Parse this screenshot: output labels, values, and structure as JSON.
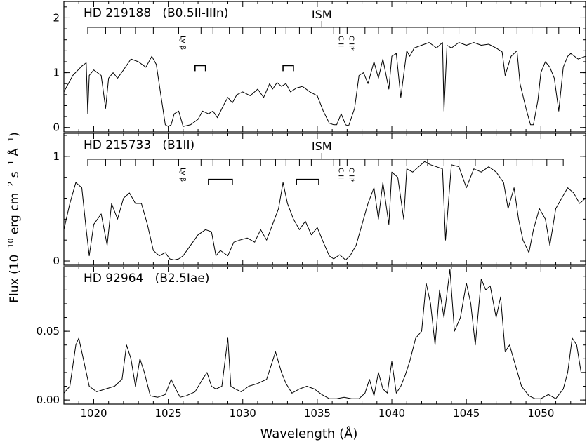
{
  "figure": {
    "ylabel_parts": [
      "Flux (10",
      "−10",
      " erg cm",
      "−2",
      " s",
      "−1",
      " Å",
      "−1",
      ")"
    ],
    "xlabel": "Wavelength (Å)"
  },
  "chart_data": [
    {
      "type": "line",
      "title": "HD 219188   (B0.5II-IIIn)",
      "ism_label": "ISM",
      "line_labels": [
        {
          "text": "Ly β",
          "x": 1025.7
        },
        {
          "text": "C II",
          "x": 1036.3
        },
        {
          "text": "C II*",
          "x": 1037.0
        }
      ],
      "xlim": [
        1018,
        1053
      ],
      "ylim": [
        -0.08,
        2.3
      ],
      "yticks": [
        0,
        1,
        2
      ],
      "ytick_labels": [
        "0",
        "1",
        "2"
      ],
      "ism_ladder_start": 1019.6,
      "ism_ladder_end": 1052.6,
      "ism_ladder_ticks": [
        1019.6,
        1020.8,
        1021.8,
        1022.8,
        1024.0,
        1025.7,
        1027.2,
        1028.0,
        1029.1,
        1030.0,
        1031.2,
        1032.2,
        1032.9,
        1033.8,
        1034.6,
        1036.1,
        1036.5,
        1037.0,
        1038.2,
        1039.1,
        1040.0,
        1041.0,
        1042.4,
        1043.5,
        1044.5,
        1045.6,
        1047.5,
        1048.4,
        1049.4,
        1050.4,
        1051.2,
        1052.6
      ],
      "brackets": [
        [
          1026.8,
          1027.5
        ],
        [
          1032.7,
          1033.4
        ]
      ],
      "series": [
        {
          "x": [
            1018.0,
            1018.6,
            1019.2,
            1019.5,
            1019.6,
            1019.7,
            1020.0,
            1020.5,
            1020.8,
            1021.0,
            1021.3,
            1021.6,
            1022.0,
            1022.5,
            1023.0,
            1023.5,
            1023.9,
            1024.2,
            1024.5,
            1024.8,
            1025.0,
            1025.2,
            1025.4,
            1025.7,
            1026.0,
            1026.5,
            1027.0,
            1027.3,
            1027.7,
            1028.0,
            1028.3,
            1028.7,
            1029.0,
            1029.3,
            1029.6,
            1030.0,
            1030.5,
            1031.0,
            1031.4,
            1031.8,
            1032.0,
            1032.3,
            1032.6,
            1032.9,
            1033.2,
            1033.6,
            1034.0,
            1034.5,
            1035.0,
            1035.4,
            1035.8,
            1036.1,
            1036.3,
            1036.6,
            1036.9,
            1037.1,
            1037.5,
            1037.8,
            1038.1,
            1038.4,
            1038.8,
            1039.1,
            1039.4,
            1039.8,
            1040.0,
            1040.3,
            1040.6,
            1041.0,
            1041.2,
            1041.5,
            1042.0,
            1042.5,
            1043.0,
            1043.4,
            1043.5,
            1043.7,
            1044.0,
            1044.5,
            1045.0,
            1045.5,
            1046.0,
            1046.5,
            1047.0,
            1047.4,
            1047.6,
            1048.0,
            1048.4,
            1048.6,
            1049.0,
            1049.3,
            1049.5,
            1049.8,
            1050.0,
            1050.3,
            1050.6,
            1050.9,
            1051.2,
            1051.5,
            1051.8,
            1052.0,
            1052.5,
            1053.0
          ],
          "y": [
            0.65,
            0.95,
            1.12,
            1.18,
            0.25,
            0.95,
            1.05,
            0.95,
            0.35,
            0.9,
            1.0,
            0.9,
            1.05,
            1.25,
            1.2,
            1.1,
            1.3,
            1.15,
            0.6,
            0.05,
            0.02,
            0.05,
            0.25,
            0.3,
            0.02,
            0.05,
            0.15,
            0.3,
            0.25,
            0.3,
            0.18,
            0.4,
            0.55,
            0.45,
            0.6,
            0.65,
            0.58,
            0.7,
            0.55,
            0.8,
            0.7,
            0.82,
            0.75,
            0.8,
            0.65,
            0.72,
            0.75,
            0.65,
            0.58,
            0.3,
            0.08,
            0.05,
            0.05,
            0.25,
            0.05,
            0.03,
            0.35,
            0.95,
            1.0,
            0.8,
            1.2,
            0.9,
            1.25,
            0.7,
            1.3,
            1.35,
            0.55,
            1.4,
            1.3,
            1.45,
            1.5,
            1.55,
            1.45,
            1.55,
            0.3,
            1.5,
            1.45,
            1.55,
            1.5,
            1.55,
            1.5,
            1.52,
            1.45,
            1.38,
            0.95,
            1.3,
            1.4,
            0.8,
            0.35,
            0.05,
            0.05,
            0.5,
            1.0,
            1.2,
            1.1,
            0.9,
            0.3,
            1.1,
            1.3,
            1.35,
            1.25,
            1.3
          ]
        }
      ]
    },
    {
      "type": "line",
      "title": "HD 215733   (B1II)",
      "ism_label": "ISM",
      "line_labels": [
        {
          "text": "Ly β",
          "x": 1025.7
        },
        {
          "text": "C II",
          "x": 1036.3
        },
        {
          "text": "C II*",
          "x": 1037.0
        }
      ],
      "xlim": [
        1018,
        1053
      ],
      "ylim": [
        -0.04,
        1.22
      ],
      "yticks": [
        0,
        1
      ],
      "ytick_labels": [
        "0",
        "1"
      ],
      "ism_ladder_start": 1019.6,
      "ism_ladder_end": 1051.5,
      "ism_ladder_ticks": [
        1019.6,
        1020.8,
        1021.8,
        1022.8,
        1024.0,
        1025.7,
        1027.2,
        1028.0,
        1029.1,
        1030.0,
        1031.2,
        1032.2,
        1032.9,
        1033.8,
        1034.6,
        1036.1,
        1036.5,
        1037.0,
        1038.2,
        1039.1,
        1040.0,
        1041.0,
        1042.4,
        1043.5,
        1044.5,
        1045.6,
        1047.5,
        1048.4,
        1049.4,
        1050.4,
        1051.5
      ],
      "brackets": [
        [
          1027.7,
          1029.3
        ],
        [
          1033.6,
          1035.1
        ]
      ],
      "series": [
        {
          "x": [
            1018.0,
            1018.4,
            1018.8,
            1019.2,
            1019.5,
            1019.7,
            1020.0,
            1020.5,
            1020.9,
            1021.2,
            1021.6,
            1022.0,
            1022.4,
            1022.8,
            1023.2,
            1023.6,
            1024.0,
            1024.4,
            1024.8,
            1025.1,
            1025.4,
            1025.7,
            1026.0,
            1026.5,
            1027.0,
            1027.5,
            1027.9,
            1028.2,
            1028.5,
            1029.0,
            1029.4,
            1029.8,
            1030.3,
            1030.8,
            1031.2,
            1031.6,
            1032.0,
            1032.4,
            1032.7,
            1033.0,
            1033.4,
            1033.8,
            1034.2,
            1034.6,
            1035.0,
            1035.4,
            1035.8,
            1036.1,
            1036.5,
            1036.9,
            1037.2,
            1037.6,
            1038.0,
            1038.4,
            1038.8,
            1039.1,
            1039.4,
            1039.8,
            1040.0,
            1040.4,
            1040.8,
            1041.0,
            1041.4,
            1041.8,
            1042.2,
            1042.6,
            1043.0,
            1043.4,
            1043.6,
            1044.0,
            1044.5,
            1045.0,
            1045.5,
            1046.0,
            1046.5,
            1047.0,
            1047.5,
            1047.8,
            1048.2,
            1048.5,
            1048.8,
            1049.2,
            1049.5,
            1049.9,
            1050.3,
            1050.6,
            1051.0,
            1051.4,
            1051.8,
            1052.2,
            1052.6,
            1053.0
          ],
          "y": [
            0.3,
            0.55,
            0.75,
            0.7,
            0.3,
            0.05,
            0.35,
            0.45,
            0.15,
            0.55,
            0.4,
            0.6,
            0.65,
            0.55,
            0.55,
            0.35,
            0.1,
            0.05,
            0.08,
            0.02,
            0.01,
            0.02,
            0.05,
            0.15,
            0.25,
            0.3,
            0.28,
            0.05,
            0.1,
            0.05,
            0.18,
            0.2,
            0.22,
            0.18,
            0.3,
            0.2,
            0.35,
            0.5,
            0.75,
            0.55,
            0.4,
            0.3,
            0.38,
            0.25,
            0.32,
            0.18,
            0.05,
            0.02,
            0.06,
            0.01,
            0.05,
            0.15,
            0.35,
            0.55,
            0.7,
            0.4,
            0.75,
            0.35,
            0.85,
            0.8,
            0.4,
            0.88,
            0.85,
            0.9,
            0.95,
            0.92,
            0.9,
            0.88,
            0.2,
            0.92,
            0.9,
            0.7,
            0.88,
            0.85,
            0.9,
            0.85,
            0.75,
            0.5,
            0.7,
            0.4,
            0.2,
            0.08,
            0.3,
            0.5,
            0.4,
            0.15,
            0.5,
            0.6,
            0.7,
            0.65,
            0.55,
            0.6
          ]
        }
      ]
    },
    {
      "type": "line",
      "title": "HD 92964   (B2.5Iae)",
      "xlim": [
        1018,
        1053
      ],
      "ylim": [
        -0.003,
        0.097
      ],
      "yticks": [
        0.0,
        0.05
      ],
      "ytick_labels": [
        "0.00",
        "0.05"
      ],
      "xticks": [
        1020,
        1025,
        1030,
        1035,
        1040,
        1045,
        1050
      ],
      "xtick_labels": [
        "1020",
        "1025",
        "1030",
        "1035",
        "1040",
        "1045",
        "1050"
      ],
      "series": [
        {
          "x": [
            1018.0,
            1018.4,
            1018.8,
            1019.0,
            1019.3,
            1019.7,
            1020.2,
            1020.8,
            1021.4,
            1021.9,
            1022.2,
            1022.5,
            1022.8,
            1023.1,
            1023.4,
            1023.8,
            1024.3,
            1024.8,
            1025.2,
            1025.5,
            1025.8,
            1026.2,
            1026.8,
            1027.3,
            1027.6,
            1027.9,
            1028.2,
            1028.6,
            1029.0,
            1029.2,
            1029.5,
            1029.9,
            1030.4,
            1031.0,
            1031.6,
            1032.2,
            1032.6,
            1032.9,
            1033.3,
            1033.8,
            1034.3,
            1034.8,
            1035.3,
            1035.8,
            1036.3,
            1036.8,
            1037.3,
            1037.8,
            1038.2,
            1038.5,
            1038.8,
            1039.1,
            1039.4,
            1039.7,
            1040.0,
            1040.3,
            1040.6,
            1040.9,
            1041.2,
            1041.6,
            1042.0,
            1042.3,
            1042.6,
            1042.9,
            1043.2,
            1043.5,
            1043.9,
            1044.2,
            1044.6,
            1045.0,
            1045.3,
            1045.6,
            1046.0,
            1046.3,
            1046.6,
            1047.0,
            1047.3,
            1047.6,
            1047.9,
            1048.3,
            1048.7,
            1049.2,
            1049.6,
            1050.0,
            1050.5,
            1051.0,
            1051.5,
            1051.8,
            1052.1,
            1052.4,
            1052.7,
            1053.0
          ],
          "y": [
            0.005,
            0.01,
            0.04,
            0.045,
            0.03,
            0.01,
            0.006,
            0.008,
            0.01,
            0.015,
            0.04,
            0.03,
            0.01,
            0.03,
            0.02,
            0.003,
            0.002,
            0.004,
            0.015,
            0.008,
            0.002,
            0.003,
            0.006,
            0.015,
            0.02,
            0.01,
            0.008,
            0.01,
            0.045,
            0.01,
            0.008,
            0.006,
            0.01,
            0.012,
            0.015,
            0.035,
            0.02,
            0.012,
            0.005,
            0.008,
            0.01,
            0.008,
            0.004,
            0.001,
            0.001,
            0.002,
            0.001,
            0.001,
            0.005,
            0.015,
            0.003,
            0.02,
            0.008,
            0.005,
            0.028,
            0.005,
            0.01,
            0.018,
            0.028,
            0.045,
            0.05,
            0.085,
            0.07,
            0.04,
            0.08,
            0.06,
            0.095,
            0.05,
            0.06,
            0.085,
            0.07,
            0.04,
            0.088,
            0.08,
            0.083,
            0.06,
            0.075,
            0.035,
            0.04,
            0.025,
            0.01,
            0.003,
            0.001,
            0.001,
            0.004,
            0.001,
            0.008,
            0.02,
            0.045,
            0.04,
            0.02,
            0.02
          ]
        }
      ]
    }
  ]
}
